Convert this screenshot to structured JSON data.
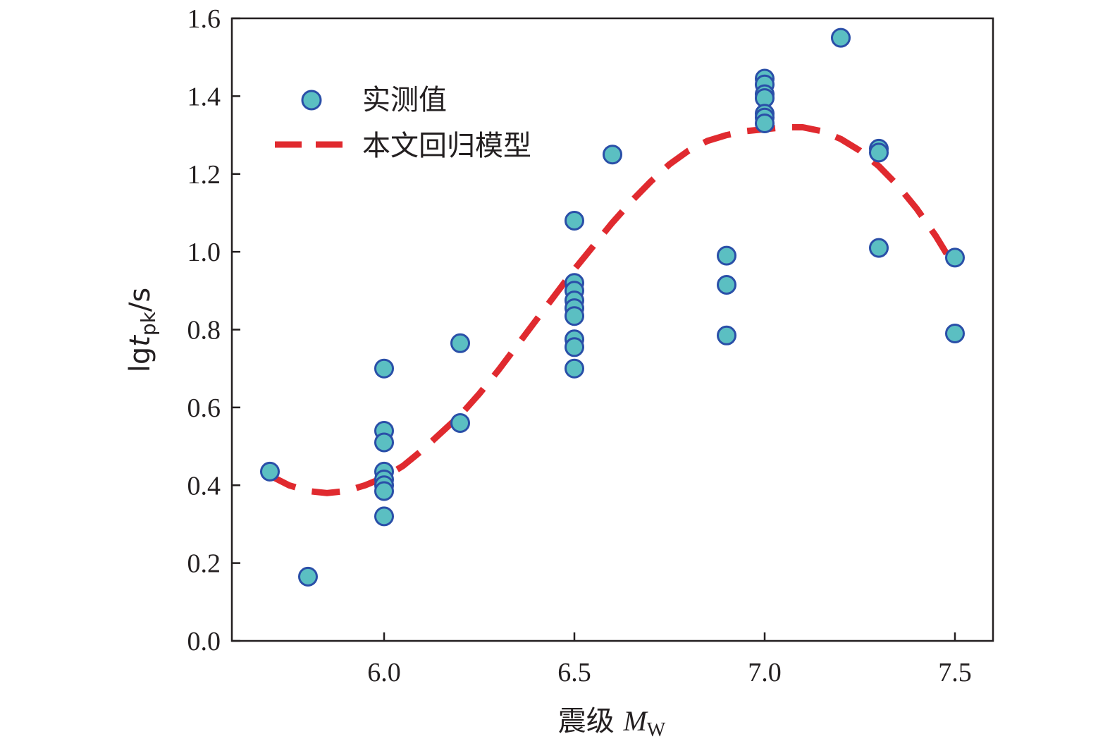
{
  "chart_data": {
    "type": "scatter",
    "xlim": [
      5.6,
      7.6
    ],
    "ylim": [
      0.0,
      1.6
    ],
    "x_ticks": [
      "6.0",
      "6.5",
      "7.0",
      "7.5"
    ],
    "y_ticks": [
      "0.0",
      "0.2",
      "0.4",
      "0.6",
      "0.8",
      "1.0",
      "1.2",
      "1.4",
      "1.6"
    ],
    "xlabel": {
      "main": "震级 ",
      "var": "M",
      "sub": "W"
    },
    "ylabel": {
      "pre": "lg",
      "var": "t",
      "sub": "pk",
      "post": "/s"
    },
    "legend_position": "top-left",
    "grid": false,
    "colors": {
      "marker_fill": "#5bbfc2",
      "marker_edge": "#2a4fa8",
      "line": "#e02a2f",
      "axis": "#231f20"
    },
    "series": [
      {
        "name": "实测值",
        "kind": "scatter",
        "points": [
          [
            5.7,
            0.435
          ],
          [
            5.8,
            0.165
          ],
          [
            6.0,
            0.7
          ],
          [
            6.0,
            0.54
          ],
          [
            6.0,
            0.51
          ],
          [
            6.0,
            0.435
          ],
          [
            6.0,
            0.415
          ],
          [
            6.0,
            0.4
          ],
          [
            6.0,
            0.385
          ],
          [
            6.0,
            0.32
          ],
          [
            6.2,
            0.765
          ],
          [
            6.2,
            0.56
          ],
          [
            6.5,
            1.08
          ],
          [
            6.5,
            0.92
          ],
          [
            6.5,
            0.9
          ],
          [
            6.5,
            0.875
          ],
          [
            6.5,
            0.855
          ],
          [
            6.5,
            0.835
          ],
          [
            6.5,
            0.775
          ],
          [
            6.5,
            0.755
          ],
          [
            6.5,
            0.7
          ],
          [
            6.6,
            1.25
          ],
          [
            6.9,
            0.99
          ],
          [
            6.9,
            0.915
          ],
          [
            6.9,
            0.785
          ],
          [
            7.0,
            1.445
          ],
          [
            7.0,
            1.43
          ],
          [
            7.0,
            1.405
          ],
          [
            7.0,
            1.395
          ],
          [
            7.0,
            1.355
          ],
          [
            7.0,
            1.345
          ],
          [
            7.0,
            1.33
          ],
          [
            7.2,
            1.55
          ],
          [
            7.3,
            1.265
          ],
          [
            7.3,
            1.255
          ],
          [
            7.3,
            1.01
          ],
          [
            7.5,
            0.985
          ],
          [
            7.5,
            0.79
          ]
        ]
      },
      {
        "name": "本文回归模型",
        "kind": "line",
        "style": "dashed",
        "x": [
          5.7,
          5.75,
          5.8,
          5.85,
          5.9,
          5.95,
          6.0,
          6.05,
          6.1,
          6.15,
          6.2,
          6.25,
          6.3,
          6.35,
          6.4,
          6.45,
          6.5,
          6.55,
          6.6,
          6.65,
          6.7,
          6.75,
          6.8,
          6.85,
          6.9,
          6.95,
          7.0,
          7.05,
          7.1,
          7.15,
          7.2,
          7.25,
          7.3,
          7.35,
          7.4,
          7.45,
          7.5
        ],
        "y": [
          0.425,
          0.4,
          0.385,
          0.38,
          0.385,
          0.4,
          0.42,
          0.45,
          0.49,
          0.535,
          0.58,
          0.635,
          0.695,
          0.76,
          0.825,
          0.89,
          0.955,
          1.015,
          1.075,
          1.13,
          1.18,
          1.225,
          1.26,
          1.285,
          1.3,
          1.31,
          1.315,
          1.32,
          1.32,
          1.31,
          1.29,
          1.26,
          1.22,
          1.17,
          1.11,
          1.04,
          0.96
        ]
      }
    ]
  }
}
